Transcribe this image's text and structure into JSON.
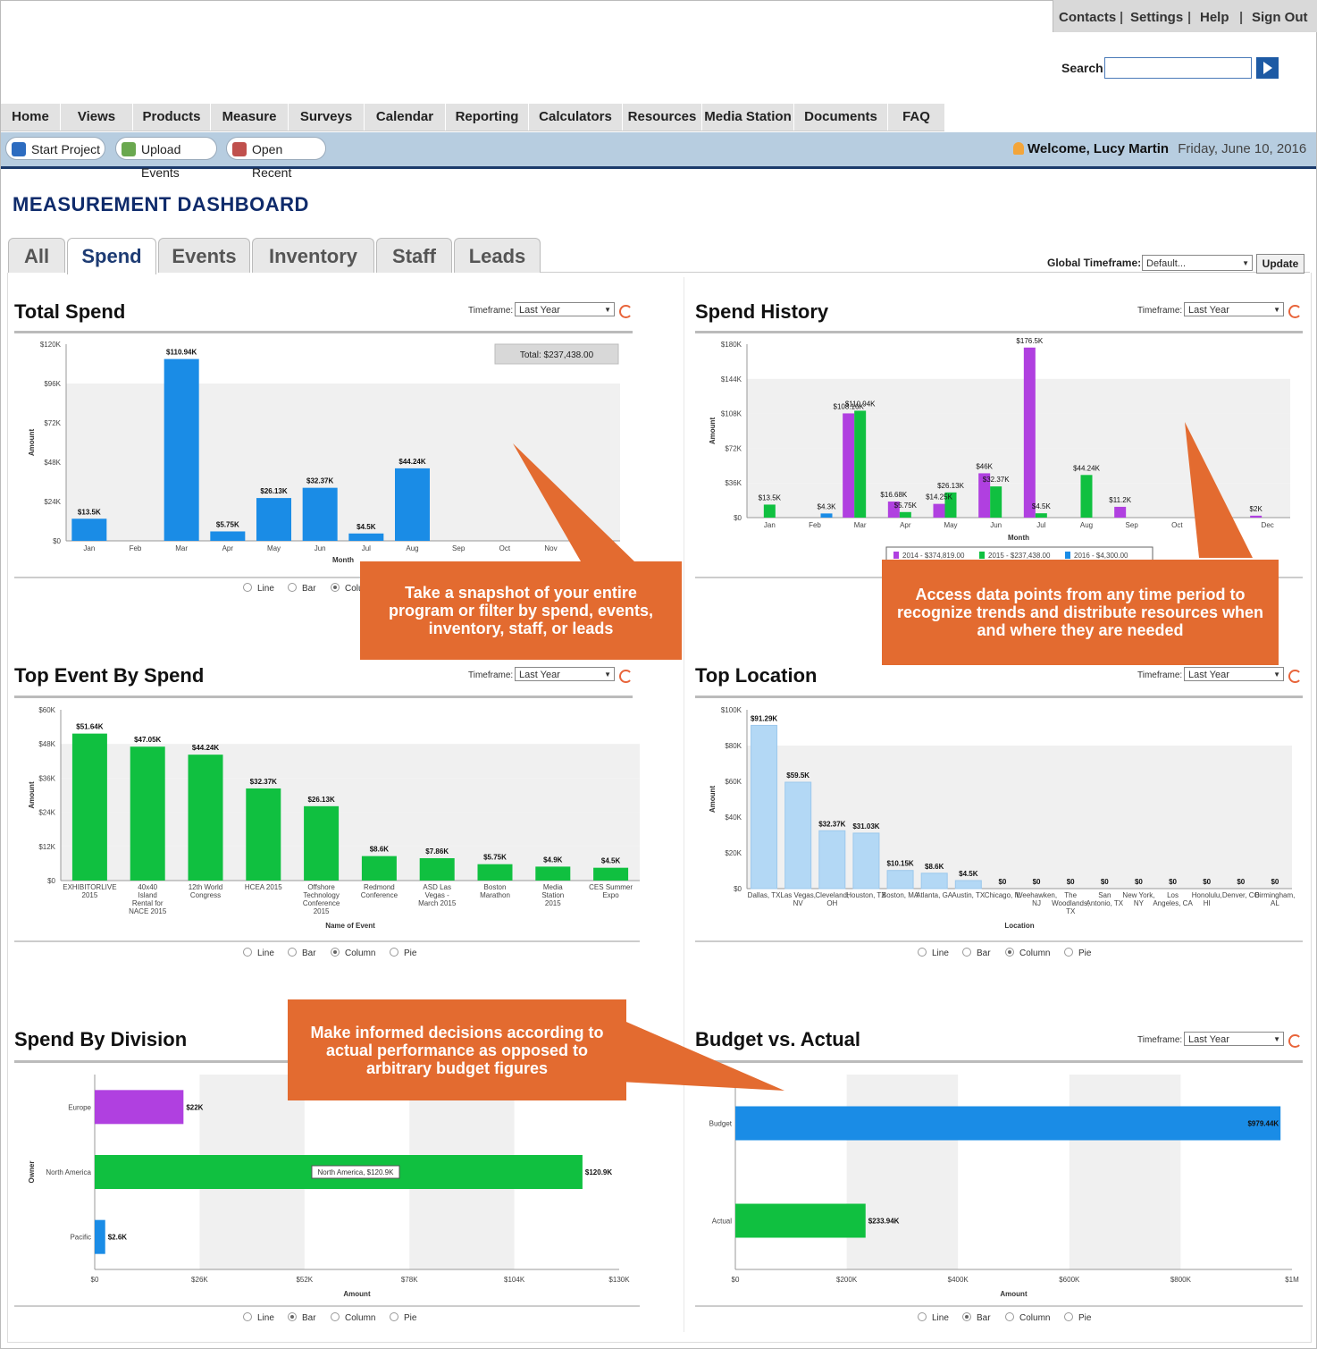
{
  "util_links": [
    "Contacts",
    "Settings",
    "Help",
    "Sign Out"
  ],
  "search": {
    "label": "Search:",
    "value": ""
  },
  "nav": [
    "Home",
    "Views",
    "Products",
    "Measure",
    "Surveys",
    "Calendar",
    "Reporting",
    "Calculators",
    "Resources",
    "Media Station",
    "Documents",
    "FAQ"
  ],
  "toolbar": {
    "start": "Start Project",
    "upload": "Upload Events",
    "open": "Open Recent"
  },
  "welcome": {
    "text": "Welcome, Lucy Martin",
    "date": "Friday, June 10, 2016"
  },
  "dashboard_title": "MEASUREMENT DASHBOARD",
  "tabs": [
    "All",
    "Spend",
    "Events",
    "Inventory",
    "Staff",
    "Leads"
  ],
  "global_timeframe": {
    "label": "Global Timeframe:",
    "value": "Default...",
    "update": "Update"
  },
  "timeframe_label": "Timeframe:",
  "timeframe_value": "Last Year",
  "radio_options": [
    "Line",
    "Bar",
    "Column",
    "Pie"
  ],
  "panels": {
    "total_spend": "Total Spend",
    "spend_history": "Spend History",
    "top_event": "Top Event By Spend",
    "top_location": "Top Location",
    "spend_division": "Spend By Division",
    "budget_actual": "Budget vs. Actual"
  },
  "callouts": {
    "snapshot": "Take a snapshot of your entire program or filter by spend, events, inventory, staff, or leads",
    "access": "Access data points from any time period to recognize trends and distribute resources when and where they are needed",
    "informed": "Make informed decisions according to actual performance as opposed to arbitrary budget figures"
  },
  "chart_data": [
    {
      "type": "bar",
      "title": "Total Spend",
      "xlabel": "Month",
      "ylabel": "Amount",
      "categories": [
        "Jan",
        "Feb",
        "Mar",
        "Apr",
        "May",
        "Jun",
        "Jul",
        "Aug",
        "Sep",
        "Oct",
        "Nov",
        "Dec"
      ],
      "values": [
        13.5,
        0,
        110.94,
        5.75,
        26.13,
        32.37,
        4.5,
        44.24,
        0,
        0,
        0,
        0
      ],
      "labels": [
        "$13.5K",
        "",
        "$110.94K",
        "$5.75K",
        "$26.13K",
        "$32.37K",
        "$4.5K",
        "$44.24K",
        "",
        "",
        "",
        ""
      ],
      "yticks": [
        "$0",
        "$24K",
        "$48K",
        "$72K",
        "$96K",
        "$120K"
      ],
      "ylim": [
        0,
        120
      ],
      "total": "Total: $237,438.00",
      "color": "#1a8ce6"
    },
    {
      "type": "bar",
      "title": "Spend History",
      "xlabel": "Month",
      "ylabel": "Amount",
      "categories": [
        "Jan",
        "Feb",
        "Mar",
        "Apr",
        "May",
        "Jun",
        "Jul",
        "Aug",
        "Sep",
        "Oct",
        "Nov",
        "Dec"
      ],
      "series": [
        {
          "name": "2014 - $374,819.00",
          "color": "#b040e0",
          "values": [
            0,
            0,
            108.16,
            16.68,
            14.25,
            46,
            176.5,
            0,
            11.2,
            0,
            0,
            2
          ]
        },
        {
          "name": "2015 - $237,438.00",
          "color": "#10c040",
          "values": [
            13.5,
            0,
            110.94,
            5.75,
            26.13,
            32.37,
            4.5,
            44.24,
            0,
            0,
            0,
            0
          ]
        },
        {
          "name": "2016 - $4,300.00",
          "color": "#1a8ce6",
          "values": [
            0,
            4.3,
            0,
            0,
            0,
            0,
            0,
            0,
            0,
            0,
            0,
            0
          ]
        }
      ],
      "labels": [
        {
          "cat": 0,
          "text": "$13.5K"
        },
        {
          "cat": 1,
          "text": "$4.3K"
        },
        {
          "cat": 2,
          "text": "$108.16K",
          "s": 0
        },
        {
          "cat": 2,
          "text": "$110.94K",
          "s": 1
        },
        {
          "cat": 3,
          "text": "$16.68K",
          "s": 0
        },
        {
          "cat": 3,
          "text": "$5.75K",
          "s": 1
        },
        {
          "cat": 4,
          "text": "$14.25K",
          "s": 0
        },
        {
          "cat": 4,
          "text": "$26.13K",
          "s": 1
        },
        {
          "cat": 5,
          "text": "$46K",
          "s": 0
        },
        {
          "cat": 5,
          "text": "$32.37K",
          "s": 1
        },
        {
          "cat": 6,
          "text": "$176.5K",
          "s": 0
        },
        {
          "cat": 6,
          "text": "$4.5K",
          "s": 1
        },
        {
          "cat": 7,
          "text": "$44.24K",
          "s": 1
        },
        {
          "cat": 8,
          "text": "$11.2K",
          "s": 0
        },
        {
          "cat": 11,
          "text": "$2K",
          "s": 0
        }
      ],
      "yticks": [
        "$0",
        "$36K",
        "$72K",
        "$108K",
        "$144K",
        "$180K"
      ],
      "ylim": [
        0,
        180
      ]
    },
    {
      "type": "bar",
      "title": "Top Event By Spend",
      "xlabel": "Name of Event",
      "ylabel": "Amount",
      "categories": [
        "EXHIBITORLIVE 2015",
        "40x40 Island Rental for NACE 2015",
        "12th World Congress",
        "HCEA 2015",
        "Offshore Technology Conference 2015",
        "Redmond Conference",
        "ASD Las Vegas - March 2015",
        "Boston Marathon",
        "Media Station 2015",
        "CES Summer Expo"
      ],
      "values": [
        51.64,
        47.05,
        44.24,
        32.37,
        26.13,
        8.6,
        7.86,
        5.75,
        4.9,
        4.5
      ],
      "labels": [
        "$51.64K",
        "$47.05K",
        "$44.24K",
        "$32.37K",
        "$26.13K",
        "$8.6K",
        "$7.86K",
        "$5.75K",
        "$4.9K",
        "$4.5K"
      ],
      "yticks": [
        "$0",
        "$12K",
        "$24K",
        "$36K",
        "$48K",
        "$60K"
      ],
      "ylim": [
        0,
        60
      ],
      "color": "#10c040"
    },
    {
      "type": "bar",
      "title": "Top Location",
      "xlabel": "Location",
      "ylabel": "Amount",
      "categories": [
        "Dallas, TX",
        "Las Vegas, NV",
        "Cleveland, OH",
        "Houston, TX",
        "Boston, MA",
        "Atlanta, GA",
        "Austin, TX",
        "Chicago, IL",
        "Weehawken, NJ",
        "The Woodlands, TX",
        "San Antonio, TX",
        "New York, NY",
        "Los Angeles, CA",
        "Honolulu, HI",
        "Denver, CO",
        "Birmingham, AL"
      ],
      "values": [
        91.29,
        59.5,
        32.37,
        31.03,
        10.15,
        8.6,
        4.5,
        0,
        0,
        0,
        0,
        0,
        0,
        0,
        0,
        0
      ],
      "labels": [
        "$91.29K",
        "$59.5K",
        "$32.37K",
        "$31.03K",
        "$10.15K",
        "$8.6K",
        "$4.5K",
        "$0",
        "$0",
        "$0",
        "$0",
        "$0",
        "$0",
        "$0",
        "$0",
        "$0"
      ],
      "yticks": [
        "$0",
        "$20K",
        "$40K",
        "$60K",
        "$80K",
        "$100K"
      ],
      "ylim": [
        0,
        100
      ],
      "color": "#b3d8f5"
    },
    {
      "type": "bar",
      "title": "Spend By Division",
      "xlabel": "Amount",
      "ylabel": "Owner",
      "categories": [
        "Europe",
        "North America",
        "Pacific"
      ],
      "values": [
        22,
        120.9,
        2.6
      ],
      "labels": [
        "$22K",
        "$120.9K",
        "$2.6K"
      ],
      "colors": [
        "#b040e0",
        "#10c040",
        "#1a8ce6"
      ],
      "xticks": [
        "$0",
        "$26K",
        "$52K",
        "$78K",
        "$104K",
        "$130K"
      ],
      "xlim": [
        0,
        130
      ],
      "tooltip": "North America, $120.9K"
    },
    {
      "type": "bar",
      "title": "Budget vs. Actual",
      "xlabel": "Amount",
      "categories": [
        "Budget",
        "Actual"
      ],
      "values": [
        979.44,
        233.94
      ],
      "labels": [
        "$979.44K",
        "$233.94K"
      ],
      "colors": [
        "#1a8ce6",
        "#10c040"
      ],
      "xticks": [
        "$0",
        "$200K",
        "$400K",
        "$600K",
        "$800K",
        "$1M"
      ],
      "xlim": [
        0,
        1000
      ]
    }
  ]
}
